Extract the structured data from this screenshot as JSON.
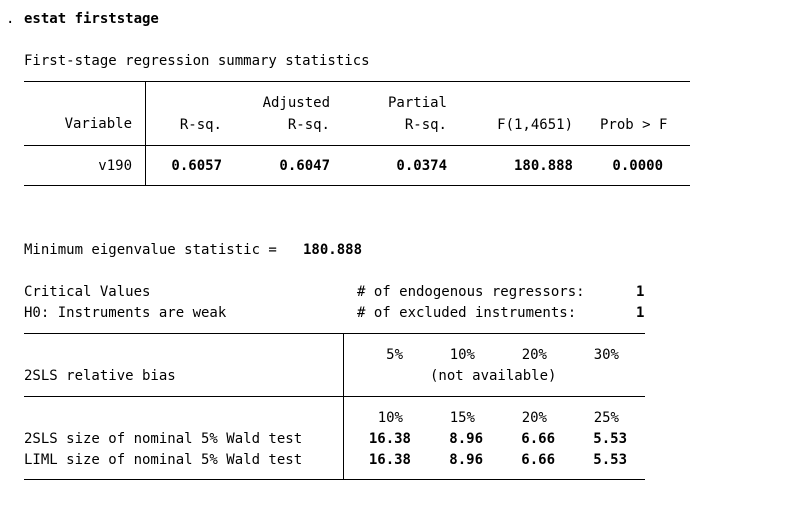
{
  "command": {
    "prompt": ".",
    "text": "estat firststage"
  },
  "first_stage": {
    "title": "First-stage regression summary statistics",
    "headers": {
      "variable": "Variable",
      "rsq": "R-sq.",
      "adj_top": "Adjusted",
      "adj_bottom": "R-sq.",
      "partial_top": "Partial",
      "partial_bottom": "R-sq.",
      "f": "F(1,4651)",
      "prob": "Prob > F"
    },
    "rows": [
      {
        "variable": "v190",
        "rsq": "0.6057",
        "adj_rsq": "0.6047",
        "partial_rsq": "0.0374",
        "f": "180.888",
        "prob": "0.0000"
      }
    ]
  },
  "eigen": {
    "label": "Minimum eigenvalue statistic = ",
    "value": "180.888"
  },
  "critical": {
    "title": "Critical Values",
    "h0": "H0: Instruments are weak",
    "endog_label": "# of endogenous regressors:",
    "endog_value": "1",
    "excl_label": "# of excluded instruments:",
    "excl_value": "1",
    "bias": {
      "label": "2SLS relative bias",
      "columns": [
        "5%",
        "10%",
        "20%",
        "30%"
      ],
      "note": "(not available)"
    },
    "size": {
      "columns": [
        "10%",
        "15%",
        "20%",
        "25%"
      ],
      "rows": [
        {
          "label": "2SLS size of nominal 5% Wald test",
          "values": [
            "16.38",
            "8.96",
            "6.66",
            "5.53"
          ]
        },
        {
          "label": "LIML size of nominal 5% Wald test",
          "values": [
            "16.38",
            "8.96",
            "6.66",
            "5.53"
          ]
        }
      ]
    }
  }
}
